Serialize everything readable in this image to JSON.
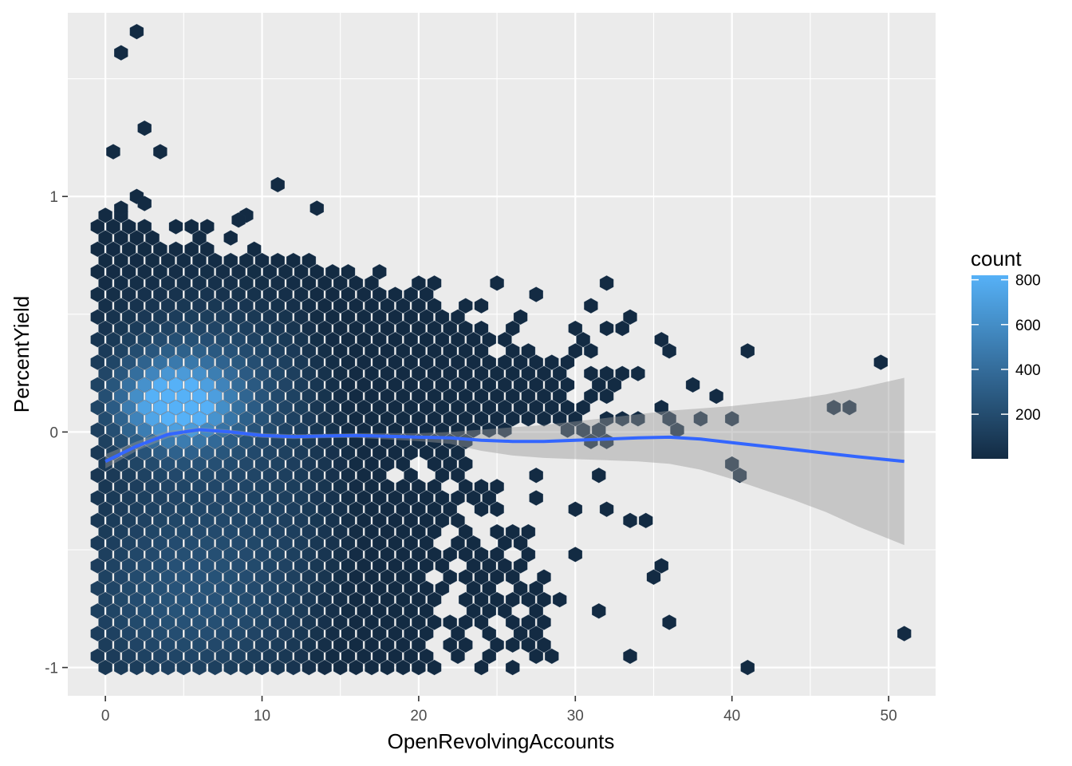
{
  "chart_data": {
    "type": "hexbin",
    "xlabel": "OpenRevolvingAccounts",
    "ylabel": "PercentYield",
    "xlim": [
      -2.4,
      53.0
    ],
    "ylim": [
      -1.12,
      1.78
    ],
    "x_ticks": [
      0,
      10,
      20,
      30,
      40,
      50
    ],
    "x_tick_labels": [
      "0",
      "10",
      "20",
      "30",
      "40",
      "50"
    ],
    "y_ticks": [
      -1,
      0,
      1
    ],
    "y_tick_labels": [
      "-1",
      "0",
      "1"
    ],
    "grid": true,
    "legend": {
      "title": "count",
      "position": "right",
      "breaks": [
        200,
        400,
        600,
        800
      ],
      "break_labels": [
        "200",
        "400",
        "600",
        "800"
      ],
      "range": [
        1,
        820
      ],
      "low_color": "#132B43",
      "high_color": "#56B1F7"
    },
    "hexbin": {
      "x_spacing": 1.0,
      "y_spacing": 0.048,
      "x0": 0.0,
      "y0": -1.0,
      "rows": [
        {
          "y": -1.0,
          "x_from": 0,
          "x_to": 19.0,
          "extra_x": [
            20,
            21,
            24,
            26,
            41
          ]
        },
        {
          "y": -0.952,
          "x_from": -0.5,
          "x_to": 20.5,
          "extra_x": [
            22.5,
            24.5,
            33.5,
            28.5,
            27.5
          ]
        },
        {
          "y": -0.904,
          "x_from": 0,
          "x_to": 20.0,
          "extra_x": [
            22,
            23,
            25,
            26,
            27,
            28
          ]
        },
        {
          "y": -0.856,
          "x_from": -0.5,
          "x_to": 20.5,
          "extra_x": [
            22.5,
            24.5,
            26.5,
            27.5,
            51
          ]
        },
        {
          "y": -0.808,
          "x_from": 0,
          "x_to": 21.0,
          "extra_x": [
            22,
            23,
            24,
            26,
            27,
            28,
            36
          ]
        },
        {
          "y": -0.76,
          "x_from": -0.5,
          "x_to": 20.5,
          "extra_x": [
            23.5,
            24.5,
            25.5,
            27.5,
            31.5
          ]
        },
        {
          "y": -0.712,
          "x_from": 0,
          "x_to": 21.0,
          "extra_x": [
            23,
            24,
            25,
            26,
            27,
            28,
            29
          ]
        },
        {
          "y": -0.664,
          "x_from": -0.5,
          "x_to": 20.5,
          "extra_x": [
            21.5,
            23.5,
            24.5,
            26.5,
            27.5
          ]
        },
        {
          "y": -0.616,
          "x_from": 0,
          "x_to": 20.0,
          "extra_x": [
            22,
            23,
            24,
            25,
            26,
            28,
            35
          ]
        },
        {
          "y": -0.568,
          "x_from": -0.5,
          "x_to": 20.5,
          "extra_x": [
            21.5,
            23.5,
            24.5,
            25.5,
            26.5,
            35.5
          ]
        },
        {
          "y": -0.52,
          "x_from": 0,
          "x_to": 20.0,
          "extra_x": [
            21,
            22,
            23,
            24,
            25,
            27,
            30
          ]
        },
        {
          "y": -0.472,
          "x_from": -0.5,
          "x_to": 20.5,
          "extra_x": [
            22.5,
            23.5,
            25.5,
            26.5
          ]
        },
        {
          "y": -0.424,
          "x_from": 0,
          "x_to": 21.0,
          "extra_x": [
            23,
            25,
            26,
            27
          ]
        },
        {
          "y": -0.376,
          "x_from": -0.5,
          "x_to": 21.5,
          "extra_x": [
            22.5,
            33.5,
            34.5
          ]
        },
        {
          "y": -0.328,
          "x_from": 0,
          "x_to": 21.0,
          "extra_x": [
            22,
            24,
            25,
            30,
            32
          ]
        },
        {
          "y": -0.28,
          "x_from": -0.5,
          "x_to": 22.5,
          "extra_x": [
            23.5,
            24.5,
            27.5
          ]
        },
        {
          "y": -0.232,
          "x_from": 0,
          "x_to": 21.0,
          "extra_x": [
            23,
            24,
            25
          ]
        },
        {
          "y": -0.184,
          "x_from": -0.5,
          "x_to": 17.5,
          "extra_x": [
            19.5,
            21.5,
            22.5,
            27.5,
            31.5,
            40.5
          ]
        },
        {
          "y": -0.136,
          "x_from": 0,
          "x_to": 18.0,
          "extra_x": [
            19,
            21,
            22,
            23,
            40
          ]
        },
        {
          "y": -0.088,
          "x_from": -0.5,
          "x_to": 19.5,
          "extra_x": [
            20.5,
            21.5,
            22.5
          ]
        },
        {
          "y": -0.04,
          "x_from": 0,
          "x_to": 23.0,
          "extra_x": [
            31,
            32
          ]
        },
        {
          "y": 0.008,
          "x_from": -0.5,
          "x_to": 25.5,
          "extra_x": [
            29.5,
            30.5,
            31.5,
            36.5
          ]
        },
        {
          "y": 0.056,
          "x_from": 0,
          "x_to": 30.0,
          "extra_x": [
            32,
            33,
            34,
            36,
            38,
            40
          ]
        },
        {
          "y": 0.104,
          "x_from": -0.5,
          "x_to": 27.5,
          "extra_x": [
            28.5,
            29.5,
            30.5,
            35.5,
            46.5,
            47.5
          ]
        },
        {
          "y": 0.152,
          "x_from": 0,
          "x_to": 29.0,
          "extra_x": [
            31,
            32,
            39
          ]
        },
        {
          "y": 0.2,
          "x_from": -0.5,
          "x_to": 28.5,
          "extra_x": [
            29.5,
            31.5,
            32.5,
            37.5
          ]
        },
        {
          "y": 0.248,
          "x_from": 0,
          "x_to": 29.0,
          "extra_x": [
            31,
            32,
            33,
            34
          ]
        },
        {
          "y": 0.296,
          "x_from": -0.5,
          "x_to": 28.5,
          "extra_x": [
            29.5,
            49.5
          ]
        },
        {
          "y": 0.344,
          "x_from": 0,
          "x_to": 24.0,
          "extra_x": [
            26,
            27,
            30,
            31,
            36,
            41
          ]
        },
        {
          "y": 0.392,
          "x_from": -0.5,
          "x_to": 25.5,
          "extra_x": [
            30.5,
            35.5
          ]
        },
        {
          "y": 0.44,
          "x_from": 0,
          "x_to": 24.0,
          "extra_x": [
            26,
            30,
            32,
            33
          ]
        },
        {
          "y": 0.488,
          "x_from": -0.5,
          "x_to": 22.5,
          "extra_x": [
            26.5,
            33.5
          ]
        },
        {
          "y": 0.536,
          "x_from": 0,
          "x_to": 21.0,
          "extra_x": [
            23,
            24,
            31
          ]
        },
        {
          "y": 0.584,
          "x_from": -0.5,
          "x_to": 19.5,
          "extra_x": [
            20.5,
            27.5
          ]
        },
        {
          "y": 0.632,
          "x_from": 0,
          "x_to": 17.0,
          "extra_x": [
            20,
            21,
            25,
            32
          ]
        },
        {
          "y": 0.68,
          "x_from": -0.5,
          "x_to": 13.5,
          "extra_x": [
            14.5,
            15.5,
            17.5
          ]
        },
        {
          "y": 0.728,
          "x_from": 0,
          "x_to": 10.0,
          "extra_x": [
            11,
            12,
            13
          ]
        },
        {
          "y": 0.776,
          "x_from": -0.5,
          "x_to": 6.5,
          "extra_x": [
            9.5
          ]
        },
        {
          "y": 0.824,
          "x_from": 0,
          "x_to": 3.0,
          "extra_x": [
            6,
            8
          ]
        },
        {
          "y": 0.872,
          "x_from": -0.5,
          "x_to": 2.5,
          "extra_x": [
            4.5,
            5.5,
            6.5
          ]
        },
        {
          "y": 0.92,
          "x_from": 0,
          "x_to": 1.0,
          "extra_x": [
            9
          ]
        }
      ],
      "outliers": [
        {
          "x": 1.0,
          "y": 0.95
        },
        {
          "x": 2.0,
          "y": 1.0
        },
        {
          "x": 2.5,
          "y": 0.97
        },
        {
          "x": 0.5,
          "y": 1.19
        },
        {
          "x": 3.5,
          "y": 1.19
        },
        {
          "x": 2.5,
          "y": 1.29
        },
        {
          "x": 1.0,
          "y": 1.61
        },
        {
          "x": 2.0,
          "y": 1.7
        },
        {
          "x": 11.0,
          "y": 1.05
        },
        {
          "x": 13.5,
          "y": 0.95
        },
        {
          "x": 8.5,
          "y": 0.9
        }
      ]
    },
    "smooth": {
      "color": "#3366FF",
      "x": [
        0,
        2,
        4,
        6,
        8,
        10,
        12,
        14,
        16,
        18,
        20,
        22,
        24,
        26,
        28,
        30,
        32,
        34,
        36,
        38,
        40,
        42,
        44,
        46,
        48,
        51
      ],
      "y": [
        -0.125,
        -0.06,
        -0.01,
        0.01,
        0.0,
        -0.015,
        -0.02,
        -0.017,
        -0.015,
        -0.018,
        -0.022,
        -0.025,
        -0.035,
        -0.04,
        -0.04,
        -0.035,
        -0.03,
        -0.025,
        -0.022,
        -0.03,
        -0.045,
        -0.06,
        -0.075,
        -0.09,
        -0.105,
        -0.125
      ],
      "ci_upper": [
        -0.095,
        -0.04,
        0.005,
        0.02,
        0.01,
        -0.005,
        -0.01,
        -0.008,
        -0.005,
        -0.005,
        -0.005,
        0.0,
        0.01,
        0.02,
        0.03,
        0.045,
        0.06,
        0.075,
        0.09,
        0.1,
        0.11,
        0.125,
        0.14,
        0.16,
        0.185,
        0.23
      ],
      "ci_lower": [
        -0.155,
        -0.08,
        -0.025,
        0.0,
        -0.01,
        -0.025,
        -0.03,
        -0.026,
        -0.025,
        -0.031,
        -0.039,
        -0.05,
        -0.08,
        -0.1,
        -0.11,
        -0.115,
        -0.12,
        -0.125,
        -0.135,
        -0.16,
        -0.2,
        -0.245,
        -0.29,
        -0.34,
        -0.4,
        -0.48
      ]
    }
  }
}
